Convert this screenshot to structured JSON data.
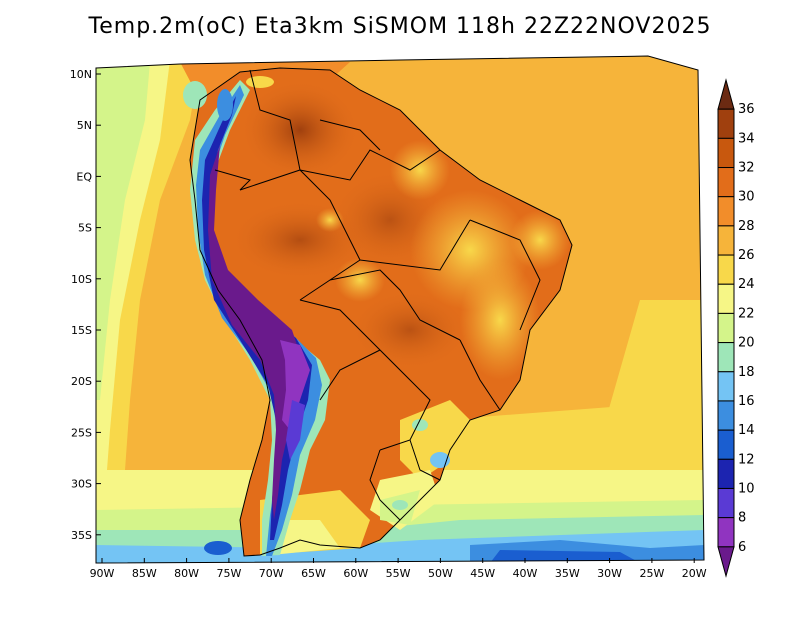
{
  "title": "Temp.2m(oC) Eta3km SiSMOM 118h 22Z22NOV2025",
  "axes": {
    "lat_labels": [
      "10N",
      "5N",
      "EQ",
      "5S",
      "10S",
      "15S",
      "20S",
      "25S",
      "30S",
      "35S"
    ],
    "lon_labels": [
      "90W",
      "85W",
      "80W",
      "75W",
      "70W",
      "65W",
      "60W",
      "55W",
      "50W",
      "45W",
      "40W",
      "35W",
      "30W",
      "25W",
      "20W"
    ]
  },
  "colorbar": {
    "labels": [
      "36",
      "34",
      "32",
      "30",
      "28",
      "26",
      "24",
      "22",
      "20",
      "18",
      "16",
      "14",
      "12",
      "10",
      "8",
      "6"
    ],
    "colors": [
      "#6b2a12",
      "#a0400e",
      "#c8580e",
      "#e26d1a",
      "#f28d2a",
      "#f6b43a",
      "#f8d84a",
      "#f6f686",
      "#d4f48a",
      "#9ee6b8",
      "#74c4f4",
      "#3c8ee0",
      "#1a5ed0",
      "#1c24b0",
      "#5a3ad4",
      "#9034c0",
      "#6a1a8c"
    ]
  }
}
